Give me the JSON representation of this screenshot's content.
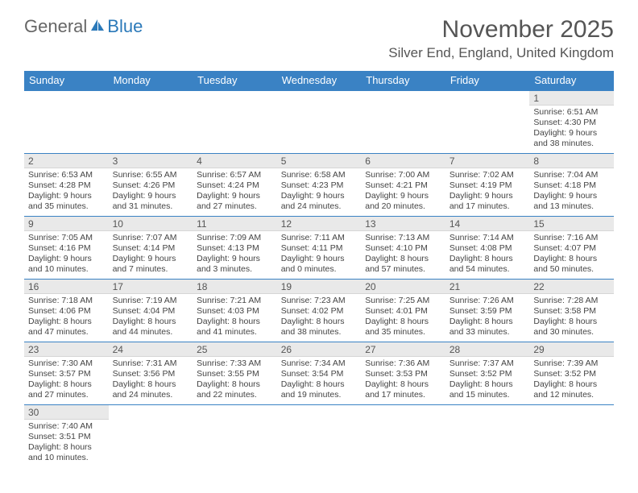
{
  "logo": {
    "text1": "General",
    "text2": "Blue",
    "icon_color": "#2b79b9"
  },
  "title": "November 2025",
  "location": "Silver End, England, United Kingdom",
  "colors": {
    "header_bg": "#3a82c4",
    "header_text": "#ffffff",
    "daynum_bg": "#e9e9e9",
    "border": "#3a82c4",
    "text": "#444444"
  },
  "day_names": [
    "Sunday",
    "Monday",
    "Tuesday",
    "Wednesday",
    "Thursday",
    "Friday",
    "Saturday"
  ],
  "weeks": [
    [
      null,
      null,
      null,
      null,
      null,
      null,
      {
        "n": "1",
        "sr": "6:51 AM",
        "ss": "4:30 PM",
        "dl": "9 hours and 38 minutes."
      }
    ],
    [
      {
        "n": "2",
        "sr": "6:53 AM",
        "ss": "4:28 PM",
        "dl": "9 hours and 35 minutes."
      },
      {
        "n": "3",
        "sr": "6:55 AM",
        "ss": "4:26 PM",
        "dl": "9 hours and 31 minutes."
      },
      {
        "n": "4",
        "sr": "6:57 AM",
        "ss": "4:24 PM",
        "dl": "9 hours and 27 minutes."
      },
      {
        "n": "5",
        "sr": "6:58 AM",
        "ss": "4:23 PM",
        "dl": "9 hours and 24 minutes."
      },
      {
        "n": "6",
        "sr": "7:00 AM",
        "ss": "4:21 PM",
        "dl": "9 hours and 20 minutes."
      },
      {
        "n": "7",
        "sr": "7:02 AM",
        "ss": "4:19 PM",
        "dl": "9 hours and 17 minutes."
      },
      {
        "n": "8",
        "sr": "7:04 AM",
        "ss": "4:18 PM",
        "dl": "9 hours and 13 minutes."
      }
    ],
    [
      {
        "n": "9",
        "sr": "7:05 AM",
        "ss": "4:16 PM",
        "dl": "9 hours and 10 minutes."
      },
      {
        "n": "10",
        "sr": "7:07 AM",
        "ss": "4:14 PM",
        "dl": "9 hours and 7 minutes."
      },
      {
        "n": "11",
        "sr": "7:09 AM",
        "ss": "4:13 PM",
        "dl": "9 hours and 3 minutes."
      },
      {
        "n": "12",
        "sr": "7:11 AM",
        "ss": "4:11 PM",
        "dl": "9 hours and 0 minutes."
      },
      {
        "n": "13",
        "sr": "7:13 AM",
        "ss": "4:10 PM",
        "dl": "8 hours and 57 minutes."
      },
      {
        "n": "14",
        "sr": "7:14 AM",
        "ss": "4:08 PM",
        "dl": "8 hours and 54 minutes."
      },
      {
        "n": "15",
        "sr": "7:16 AM",
        "ss": "4:07 PM",
        "dl": "8 hours and 50 minutes."
      }
    ],
    [
      {
        "n": "16",
        "sr": "7:18 AM",
        "ss": "4:06 PM",
        "dl": "8 hours and 47 minutes."
      },
      {
        "n": "17",
        "sr": "7:19 AM",
        "ss": "4:04 PM",
        "dl": "8 hours and 44 minutes."
      },
      {
        "n": "18",
        "sr": "7:21 AM",
        "ss": "4:03 PM",
        "dl": "8 hours and 41 minutes."
      },
      {
        "n": "19",
        "sr": "7:23 AM",
        "ss": "4:02 PM",
        "dl": "8 hours and 38 minutes."
      },
      {
        "n": "20",
        "sr": "7:25 AM",
        "ss": "4:01 PM",
        "dl": "8 hours and 35 minutes."
      },
      {
        "n": "21",
        "sr": "7:26 AM",
        "ss": "3:59 PM",
        "dl": "8 hours and 33 minutes."
      },
      {
        "n": "22",
        "sr": "7:28 AM",
        "ss": "3:58 PM",
        "dl": "8 hours and 30 minutes."
      }
    ],
    [
      {
        "n": "23",
        "sr": "7:30 AM",
        "ss": "3:57 PM",
        "dl": "8 hours and 27 minutes."
      },
      {
        "n": "24",
        "sr": "7:31 AM",
        "ss": "3:56 PM",
        "dl": "8 hours and 24 minutes."
      },
      {
        "n": "25",
        "sr": "7:33 AM",
        "ss": "3:55 PM",
        "dl": "8 hours and 22 minutes."
      },
      {
        "n": "26",
        "sr": "7:34 AM",
        "ss": "3:54 PM",
        "dl": "8 hours and 19 minutes."
      },
      {
        "n": "27",
        "sr": "7:36 AM",
        "ss": "3:53 PM",
        "dl": "8 hours and 17 minutes."
      },
      {
        "n": "28",
        "sr": "7:37 AM",
        "ss": "3:52 PM",
        "dl": "8 hours and 15 minutes."
      },
      {
        "n": "29",
        "sr": "7:39 AM",
        "ss": "3:52 PM",
        "dl": "8 hours and 12 minutes."
      }
    ],
    [
      {
        "n": "30",
        "sr": "7:40 AM",
        "ss": "3:51 PM",
        "dl": "8 hours and 10 minutes."
      },
      null,
      null,
      null,
      null,
      null,
      null
    ]
  ],
  "labels": {
    "sunrise": "Sunrise: ",
    "sunset": "Sunset: ",
    "daylight": "Daylight: "
  }
}
